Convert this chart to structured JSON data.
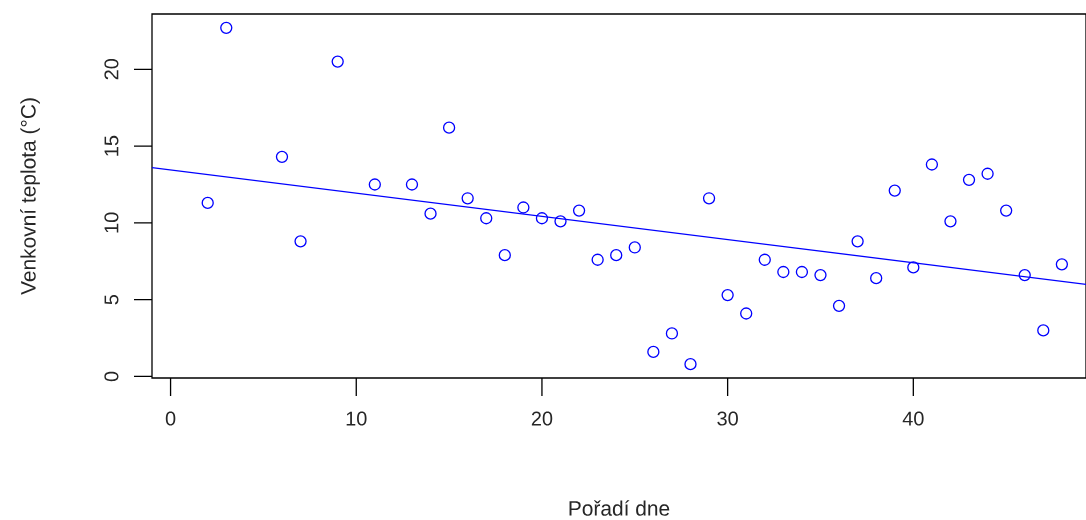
{
  "chart_data": {
    "type": "scatter",
    "xlabel": "Pořadí dne",
    "ylabel": "Venkovní teplota (°C)",
    "xlim": [
      -1,
      49.3
    ],
    "ylim": [
      -0.1,
      23.6
    ],
    "xticks": [
      0,
      10,
      20,
      30,
      40
    ],
    "yticks": [
      0,
      5,
      10,
      15,
      20
    ],
    "grid": false,
    "marker": "circle",
    "series": [
      {
        "color": "#0000ff",
        "x": [
          2,
          3,
          6,
          7,
          9,
          11,
          13,
          14,
          15,
          16,
          17,
          18,
          19,
          20,
          21,
          22,
          23,
          24,
          25,
          26,
          27,
          28,
          29,
          30,
          31,
          32,
          33,
          34,
          35,
          36,
          37,
          38,
          39,
          40,
          41,
          42,
          43,
          44,
          45,
          46,
          47,
          48
        ],
        "values": [
          11.3,
          22.7,
          14.3,
          8.8,
          20.5,
          12.5,
          12.5,
          10.6,
          16.2,
          11.6,
          10.3,
          7.9,
          11.0,
          10.3,
          10.1,
          10.8,
          7.6,
          7.9,
          8.4,
          1.6,
          2.8,
          0.8,
          11.6,
          5.3,
          4.1,
          7.6,
          6.8,
          6.8,
          6.6,
          4.6,
          8.8,
          6.4,
          12.1,
          7.1,
          13.8,
          10.1,
          12.8,
          13.2,
          10.8,
          6.6,
          3.0,
          7.3
        ]
      },
      {
        "type": "line",
        "color": "#0000ff",
        "marker": "none",
        "line_style": "solid",
        "x": [
          -1,
          49.3
        ],
        "values": [
          13.6,
          6.0
        ]
      }
    ]
  }
}
